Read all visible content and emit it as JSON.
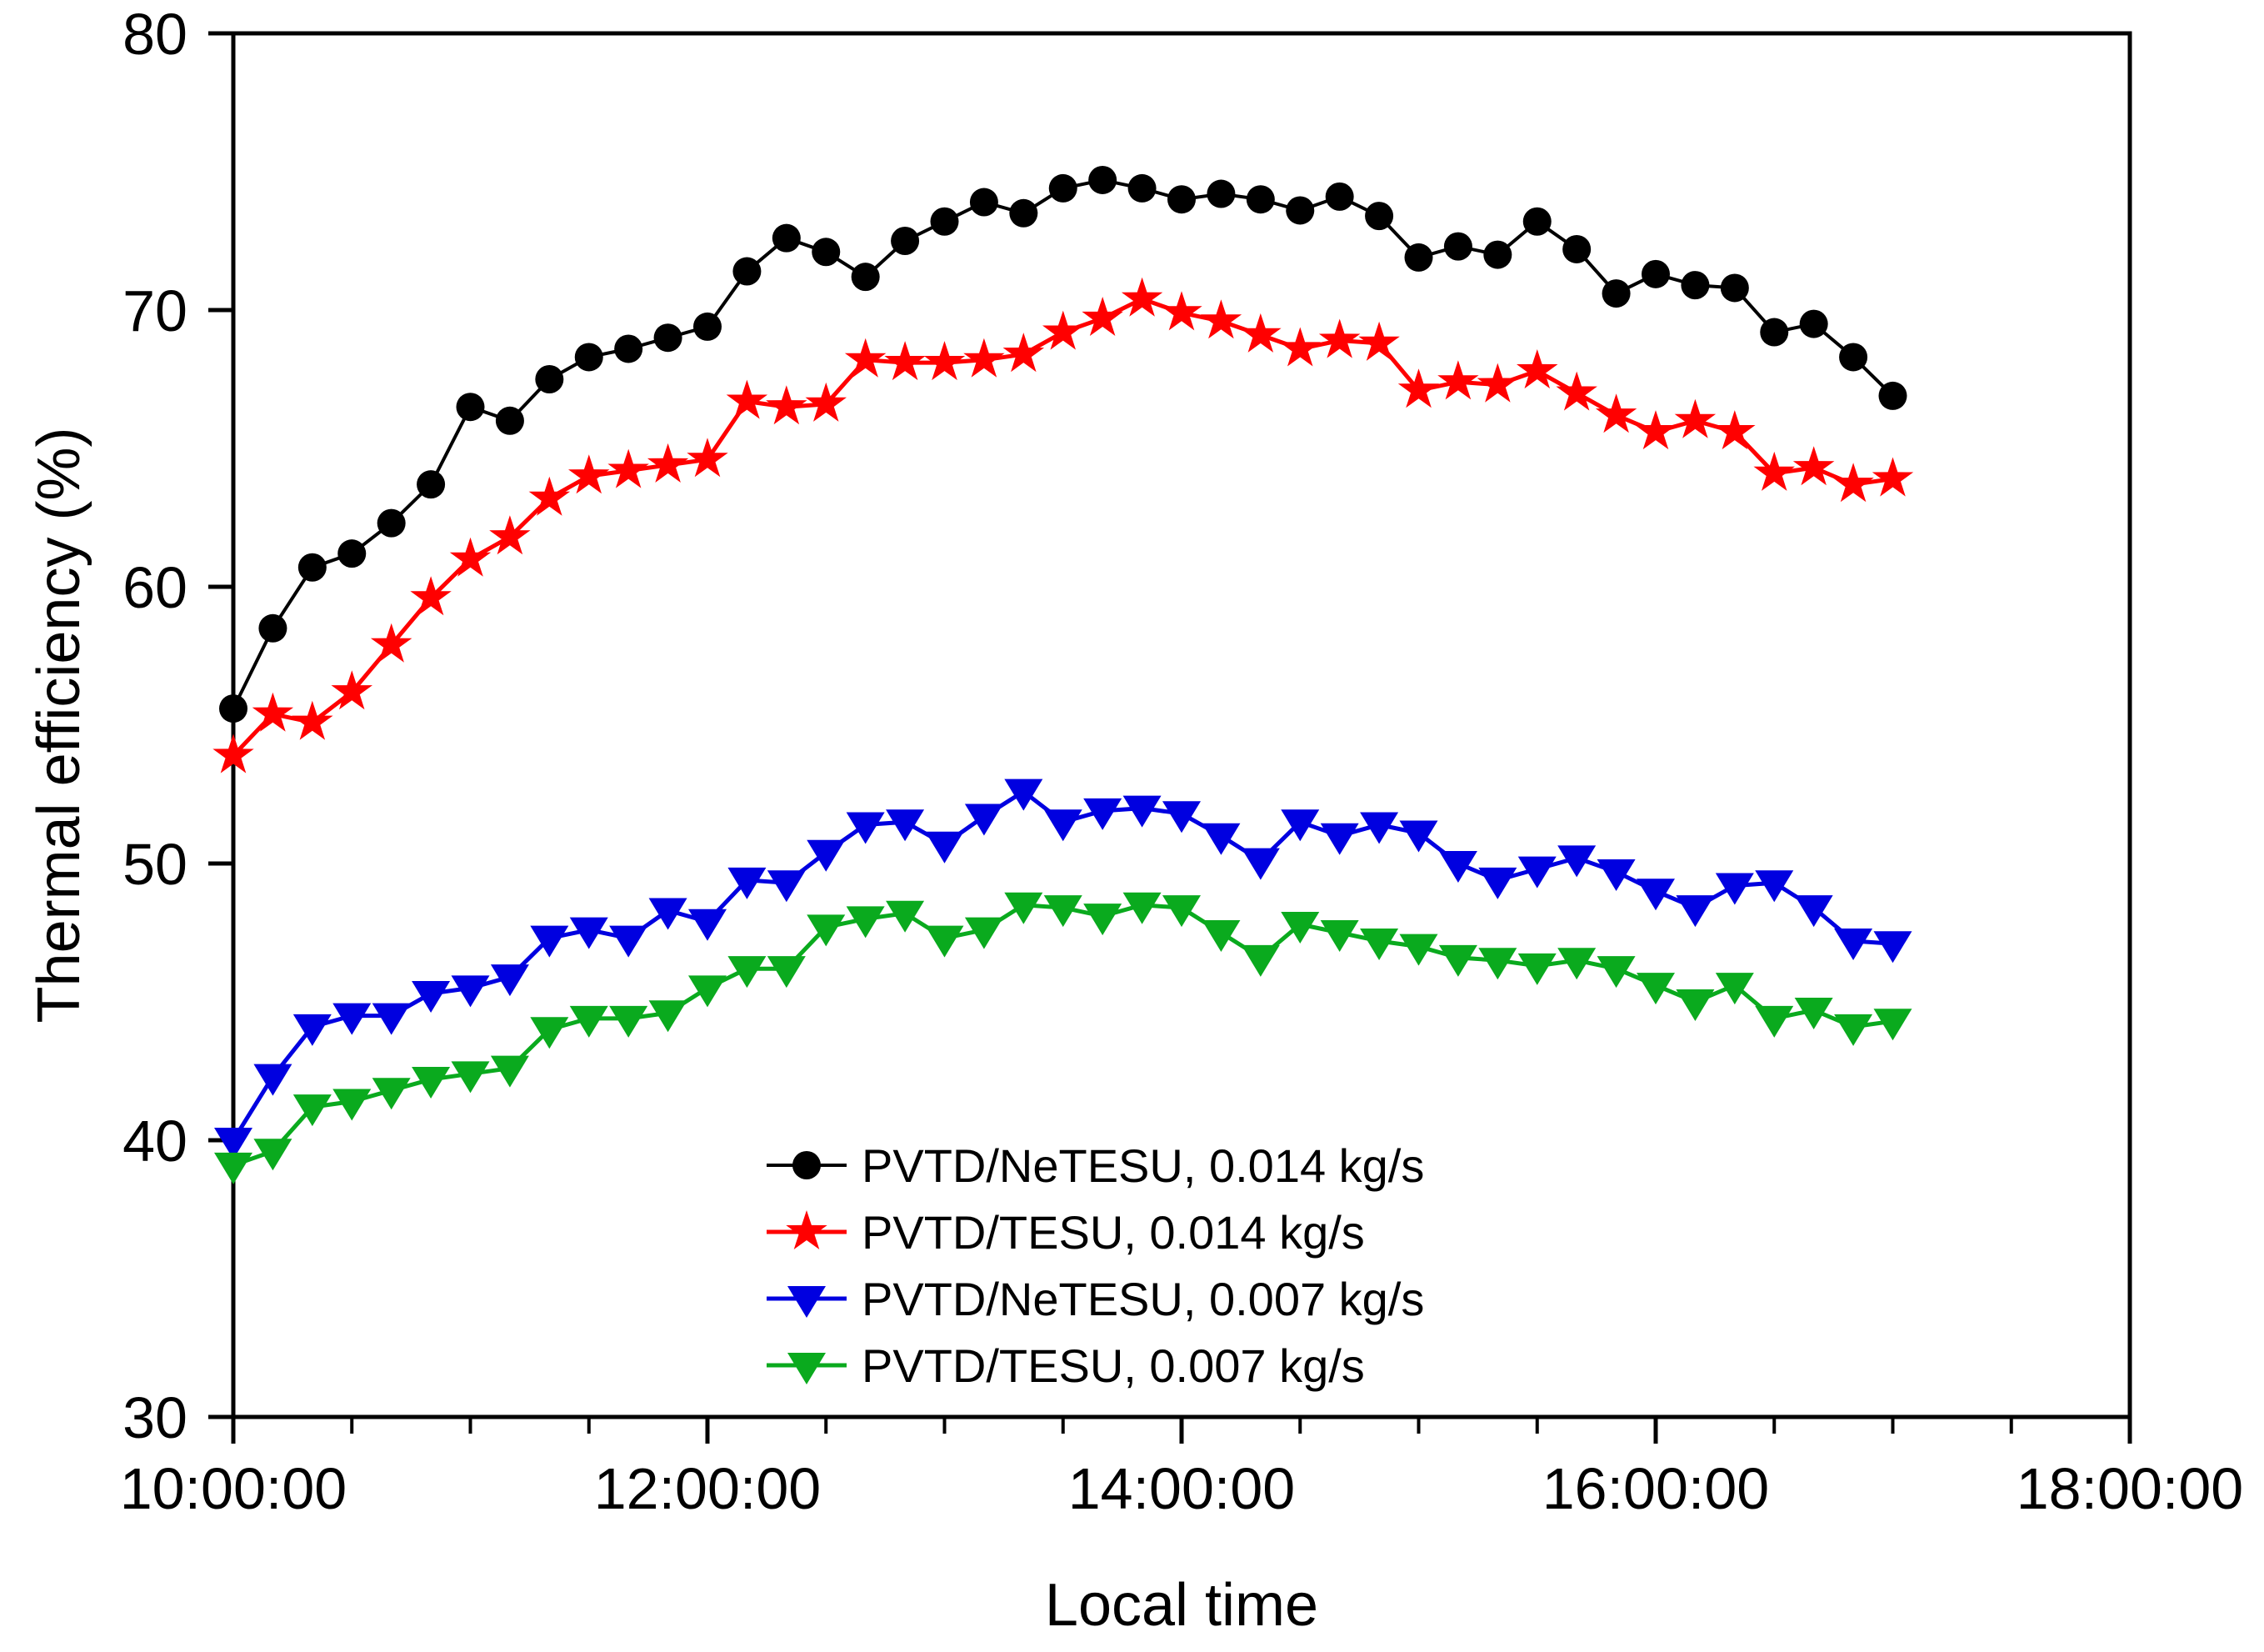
{
  "chart_data": {
    "type": "line",
    "title": "",
    "xlabel": "Local time",
    "ylabel": "Thermal efficiency (%)",
    "grid": false,
    "legend_position": "inside-bottom-center",
    "x_axis": {
      "min": "10:00:00",
      "max": "18:00:00",
      "major_ticks": [
        "10:00:00",
        "12:00:00",
        "14:00:00",
        "16:00:00",
        "18:00:00"
      ],
      "minor_tick_interval_minutes": 30
    },
    "y_axis": {
      "min": 30,
      "max": 80,
      "major_ticks": [
        30,
        40,
        50,
        60,
        70,
        80
      ]
    },
    "x_times": [
      "10:00:00",
      "10:10:00",
      "10:20:00",
      "10:30:00",
      "10:40:00",
      "10:50:00",
      "11:00:00",
      "11:10:00",
      "11:20:00",
      "11:30:00",
      "11:40:00",
      "11:50:00",
      "12:00:00",
      "12:10:00",
      "12:20:00",
      "12:30:00",
      "12:40:00",
      "12:50:00",
      "13:00:00",
      "13:10:00",
      "13:20:00",
      "13:30:00",
      "13:40:00",
      "13:50:00",
      "14:00:00",
      "14:10:00",
      "14:20:00",
      "14:30:00",
      "14:40:00",
      "14:50:00",
      "15:00:00",
      "15:10:00",
      "15:20:00",
      "15:30:00",
      "15:40:00",
      "15:50:00",
      "16:00:00",
      "16:10:00",
      "16:20:00",
      "16:30:00",
      "16:40:00",
      "16:50:00",
      "17:00:00"
    ],
    "series": [
      {
        "name": "PVTD/NeTESU, 0.014 kg/s",
        "color": "#000000",
        "marker": "circle",
        "values": [
          55.6,
          58.5,
          60.7,
          61.2,
          62.3,
          63.7,
          66.5,
          66.0,
          67.5,
          68.3,
          68.6,
          69.0,
          69.4,
          71.4,
          72.6,
          72.1,
          71.2,
          72.5,
          73.2,
          73.9,
          73.5,
          74.4,
          74.7,
          74.4,
          74.0,
          74.2,
          74.0,
          73.6,
          74.1,
          73.4,
          71.9,
          72.3,
          72.0,
          73.2,
          72.2,
          70.6,
          71.3,
          70.9,
          70.8,
          69.2,
          69.5,
          68.3,
          66.9
        ]
      },
      {
        "name": "PVTD/TESU, 0.014 kg/s",
        "color": "#FF0000",
        "marker": "star",
        "values": [
          53.9,
          55.4,
          55.1,
          56.2,
          57.9,
          59.6,
          61.0,
          61.8,
          63.2,
          64.0,
          64.2,
          64.4,
          64.6,
          66.7,
          66.5,
          66.6,
          68.2,
          68.1,
          68.1,
          68.2,
          68.4,
          69.2,
          69.7,
          70.4,
          69.9,
          69.6,
          69.1,
          68.6,
          68.9,
          68.8,
          67.1,
          67.4,
          67.3,
          67.8,
          67.0,
          66.2,
          65.6,
          66.0,
          65.6,
          64.1,
          64.3,
          63.7,
          63.9
        ]
      },
      {
        "name": "PVTD/NeTESU, 0.007 kg/s",
        "color": "#0000E0",
        "marker": "triangle-down",
        "values": [
          40.0,
          42.3,
          44.1,
          44.5,
          44.5,
          45.3,
          45.5,
          45.9,
          47.3,
          47.6,
          47.3,
          48.3,
          47.9,
          49.4,
          49.3,
          50.4,
          51.4,
          51.5,
          50.7,
          51.7,
          52.6,
          51.5,
          51.9,
          52.0,
          51.8,
          51.0,
          50.1,
          51.5,
          51.0,
          51.4,
          51.1,
          50.0,
          49.4,
          49.8,
          50.2,
          49.7,
          49.0,
          48.4,
          49.2,
          49.3,
          48.4,
          47.2,
          47.1
        ]
      },
      {
        "name": "PVTD/TESU, 0.007 kg/s",
        "color": "#0AAA1E",
        "marker": "triangle-down",
        "values": [
          39.1,
          39.6,
          41.2,
          41.4,
          41.8,
          42.2,
          42.4,
          42.6,
          44.0,
          44.4,
          44.4,
          44.6,
          45.5,
          46.2,
          46.2,
          47.7,
          48.0,
          48.2,
          47.3,
          47.6,
          48.5,
          48.4,
          48.1,
          48.5,
          48.4,
          47.5,
          46.6,
          47.8,
          47.5,
          47.2,
          47.0,
          46.6,
          46.5,
          46.3,
          46.5,
          46.2,
          45.6,
          45.0,
          45.6,
          44.4,
          44.7,
          44.1,
          44.3
        ]
      }
    ]
  }
}
